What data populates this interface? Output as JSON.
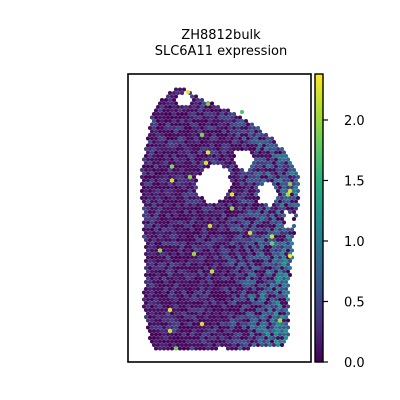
{
  "chart_data": {
    "type": "heatmap",
    "subtype": "spatial-hexbin",
    "title_lines": [
      "ZH8812bulk",
      "SLC6A11 expression"
    ],
    "xlabel": "",
    "ylabel": "",
    "grid": false,
    "colormap": "viridis",
    "colorbar": {
      "range": [
        0.0,
        2.38
      ],
      "ticks": [
        0.0,
        0.5,
        1.0,
        1.5,
        2.0
      ],
      "tick_labels": [
        "0.0",
        "0.5",
        "1.0",
        "1.5",
        "2.0"
      ],
      "placement": "right"
    },
    "value_distribution": {
      "typical_low": 0.0,
      "typical_mid": 1.0,
      "max_observed": 2.38,
      "higher_region": "right and lower-right of tissue"
    }
  }
}
